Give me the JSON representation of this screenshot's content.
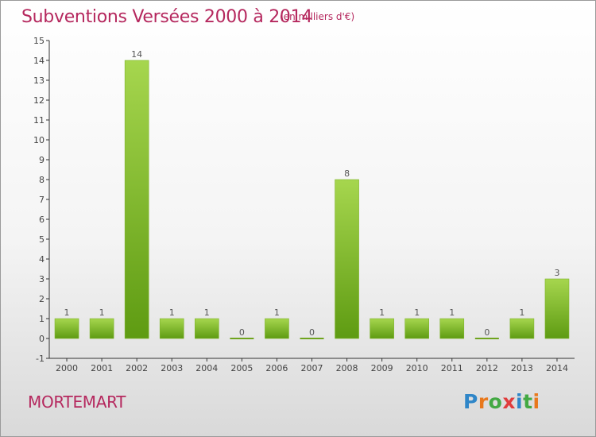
{
  "header": {
    "title": "Subventions Versées 2000 à 2014",
    "unit_note": "(en milliers d'€)"
  },
  "commune": "MORTEMART",
  "logo": {
    "text": "Proxiti",
    "letter_colors": [
      "#2f86c8",
      "#e8781c",
      "#43a943",
      "#e03c3c",
      "#2f86c8",
      "#43a943",
      "#e8781c"
    ]
  },
  "colors": {
    "title": "#b5285e",
    "bar_light": "#a6d64e",
    "bar_dark": "#5e9b12",
    "axis": "#333333"
  },
  "chart_data": {
    "type": "bar",
    "title": "Subventions Versées 2000 à 2014",
    "subtitle": "(en milliers d'€)",
    "categories": [
      "2000",
      "2001",
      "2002",
      "2003",
      "2004",
      "2005",
      "2006",
      "2007",
      "2008",
      "2009",
      "2010",
      "2011",
      "2012",
      "2013",
      "2014"
    ],
    "values": [
      1,
      1,
      14,
      1,
      1,
      0,
      1,
      0,
      8,
      1,
      1,
      1,
      0,
      1,
      3
    ],
    "ylim": [
      -1,
      15
    ],
    "yticks": [
      -1,
      0,
      1,
      2,
      3,
      4,
      5,
      6,
      7,
      8,
      9,
      10,
      11,
      12,
      13,
      14,
      15
    ],
    "data_labels": true,
    "grid": false,
    "legend": "none"
  }
}
